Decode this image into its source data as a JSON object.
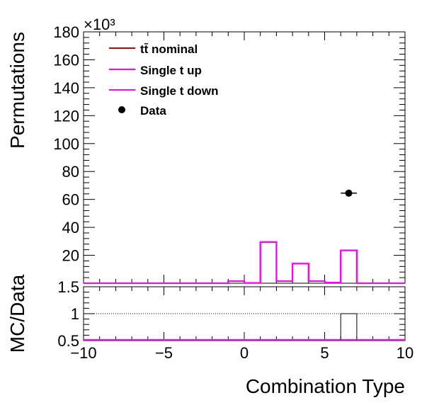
{
  "chart_data": {
    "type": "histogram",
    "x_axis": {
      "label": "Combination Type",
      "range": [
        -10,
        10
      ],
      "tick_labels": [
        "-10",
        "-5",
        "0",
        "5",
        "10"
      ]
    },
    "upper_panel": {
      "y_label": "Permutations",
      "y_multiplier": "×10³",
      "y_range": [
        0,
        180
      ],
      "y_ticks": [
        20,
        40,
        60,
        80,
        100,
        120,
        140,
        160,
        180
      ],
      "y_tick_labels": [
        "20",
        "40",
        "60",
        "80",
        "100",
        "120",
        "140",
        "160",
        "180"
      ],
      "bin_edges": [
        -10,
        -9,
        -8,
        -7,
        -6,
        -5,
        -4,
        -3,
        -2,
        -1,
        0,
        1,
        2,
        3,
        4,
        5,
        6,
        7,
        8,
        9,
        10
      ],
      "series": [
        {
          "name": "tt̄ nominal",
          "color": "#c00000",
          "values": [
            0,
            0,
            0,
            0,
            0,
            0,
            0,
            0,
            0,
            1.5,
            0.2,
            29.5,
            1.5,
            14.0,
            1.5,
            0.5,
            23.5,
            0,
            0,
            0
          ]
        },
        {
          "name": "Single t up",
          "color": "#ff00ff",
          "values": [
            0,
            0,
            0,
            0,
            0,
            0,
            0,
            0,
            0,
            1.5,
            0.2,
            29.5,
            1.5,
            14.0,
            1.5,
            0.5,
            23.5,
            0,
            0,
            0
          ]
        },
        {
          "name": "Single t down",
          "color": "#ff00ff",
          "values": [
            0,
            0,
            0,
            0,
            0,
            0,
            0,
            0,
            0,
            1.5,
            0.2,
            29.5,
            1.5,
            14.0,
            1.5,
            0.5,
            23.5,
            0,
            0,
            0
          ]
        }
      ],
      "data_points": [
        {
          "name": "Data",
          "x": 6.5,
          "y": 64.5,
          "x_err": 0.5
        }
      ],
      "legend": {
        "position": "top-left",
        "entries": [
          "tt̄ nominal",
          "Single t up",
          "Single t down",
          "Data"
        ]
      }
    },
    "ratio_panel": {
      "y_label": "MC/Data",
      "y_range": [
        0.5,
        1.5
      ],
      "y_tick_labels": [
        "0.5",
        "1",
        "1.5"
      ],
      "reference_line": 1,
      "ratio_bins": [
        {
          "x_low": 6,
          "x_high": 7,
          "value": 1
        }
      ]
    }
  }
}
